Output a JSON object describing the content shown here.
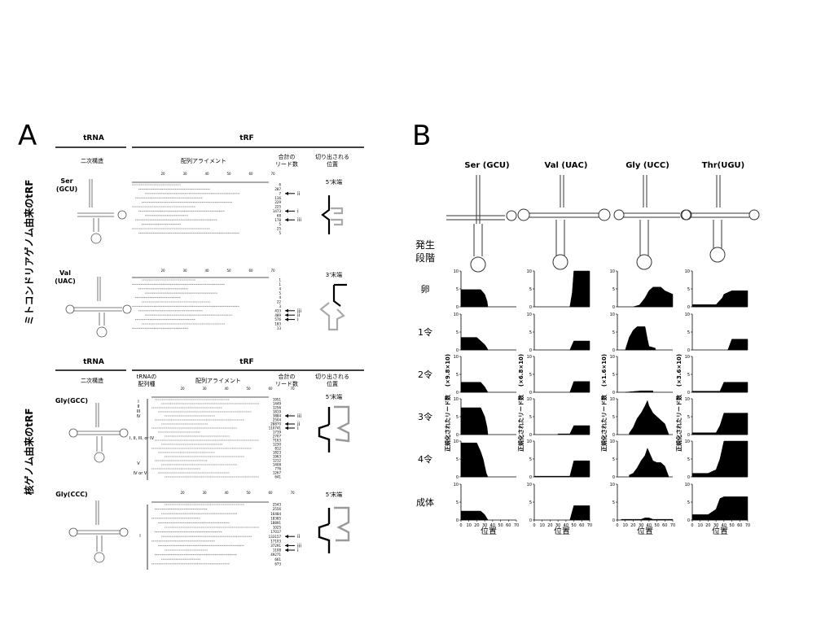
{
  "panel_a": {
    "letter": "A",
    "mito_vertical_label": "ミトコンドリアゲノム由来のtRF",
    "nuc_vertical_label": "核ゲノム由来のtRF",
    "trna_header": "tRNA",
    "trf_header": "tRF",
    "col_secondary": "二次構造",
    "col_alignment": "配列アライメント",
    "col_reads_line1": "合計の",
    "col_reads_line2": "リード数",
    "col_cut_line1": "切り出される",
    "col_cut_line2": "位置",
    "col_gene_line1": "tRNAの",
    "col_gene_line2": "配列種",
    "scale_ticks": [
      "20",
      "30",
      "40",
      "50",
      "60",
      "70"
    ],
    "blocks": [
      {
        "name_line1": "Ser",
        "name_line2": "(GCU)",
        "end_label": "5'末端",
        "reads": [
          "6",
          "287",
          "7",
          "136",
          "229",
          "225",
          "1473",
          "68",
          "178",
          "5",
          "25",
          "5"
        ],
        "arrows": [
          {
            "row": 2,
            "label": "ii"
          },
          {
            "row": 6,
            "label": "i"
          },
          {
            "row": 8,
            "label": "iii"
          }
        ]
      },
      {
        "name_line1": "Val",
        "name_line2": "(UAC)",
        "end_label": "3'末端",
        "reads": [
          "1",
          "1",
          "4",
          "5",
          "4",
          "22",
          "3",
          "433",
          "489",
          "576",
          "183",
          "13"
        ],
        "arrows": [
          {
            "row": 7,
            "label": "iii"
          },
          {
            "row": 8,
            "label": "ii"
          },
          {
            "row": 9,
            "label": "i"
          }
        ]
      },
      {
        "name_line1": "Gly(GCC)",
        "name_line2": "",
        "end_label": "5'末端",
        "gene_groups": [
          "I",
          "II",
          "III",
          "IV",
          "I, II, III, or IV",
          "V",
          "IV or V"
        ],
        "reads": [
          "1951",
          "1449",
          "1256",
          "1819",
          "3884",
          "2504",
          "28870",
          "110741",
          "1739",
          "2707",
          "7163",
          "1230",
          "812",
          "1823",
          "1963",
          "1212",
          "1408",
          "776",
          "1267",
          "641"
        ],
        "arrows": [
          {
            "row": 4,
            "label": "iii"
          },
          {
            "row": 6,
            "label": "ii"
          },
          {
            "row": 7,
            "label": "i"
          }
        ]
      },
      {
        "name_line1": "Gly(CCC)",
        "name_line2": "",
        "end_label": "5'末端",
        "gene_groups": [
          "I"
        ],
        "reads": [
          "2543",
          "2556",
          "16484",
          "18385",
          "18891",
          "1025",
          "17017",
          "133157",
          "17103",
          "37291",
          "1108",
          "49271",
          "661",
          "673"
        ],
        "arrows": [
          {
            "row": 7,
            "label": "ii"
          },
          {
            "row": 9,
            "label": "iii"
          },
          {
            "row": 10,
            "label": "i"
          }
        ]
      }
    ]
  },
  "panel_b": {
    "letter": "B",
    "stage_header_line1": "発生",
    "stage_header_line2": "段階",
    "stages": [
      "卵",
      "1令",
      "2令",
      "3令",
      "4令",
      "成体"
    ],
    "y_axis_label": "正規化されたリード数",
    "x_axis_label": "位置",
    "trnas": [
      {
        "name": "Ser (GCU)",
        "scale": "(×9.8×10)"
      },
      {
        "name": "Val (UAC)",
        "scale": "(×6.8×10)"
      },
      {
        "name": "Gly (UCC)",
        "scale": "(×1.6×10)"
      },
      {
        "name": "Thr(UGU)",
        "scale": "(×3.6×10)"
      }
    ]
  },
  "chart_data": {
    "type": "area",
    "x_ticks": [
      "0",
      "10",
      "20",
      "30",
      "40",
      "50",
      "60",
      "70"
    ],
    "y_ticks": [
      "0",
      "5",
      "10"
    ],
    "xlim": [
      0,
      70
    ],
    "ylim": [
      0,
      10
    ],
    "xlabel": "位置",
    "ylabel": "正規化されたリード数",
    "grid": false,
    "rows": [
      "卵",
      "1令",
      "2令",
      "3令",
      "4令",
      "成体"
    ],
    "columns": [
      "Ser (GCU)",
      "Val (UAC)",
      "Gly (UCC)",
      "Thr(UGU)"
    ],
    "panels": [
      {
        "row": "卵",
        "column": "Ser (GCU)",
        "x": [
          0,
          5,
          25,
          30,
          33,
          34
        ],
        "y": [
          4.8,
          4.8,
          4.8,
          3.5,
          1.5,
          0
        ]
      },
      {
        "row": "卵",
        "column": "Val (UAC)",
        "x": [
          45,
          48,
          50,
          70
        ],
        "y": [
          0,
          4,
          10,
          10
        ]
      },
      {
        "row": "卵",
        "column": "Gly (UCC)",
        "x": [
          20,
          28,
          35,
          40,
          45,
          55,
          60,
          70
        ],
        "y": [
          0,
          0.5,
          2.5,
          4.5,
          5.5,
          5.5,
          4.5,
          3.5
        ]
      },
      {
        "row": "卵",
        "column": "Thr(UGU)",
        "x": [
          0,
          30,
          38,
          40,
          50,
          70
        ],
        "y": [
          0.6,
          0.6,
          2.5,
          3.5,
          4.5,
          4.5
        ]
      },
      {
        "row": "1令",
        "column": "Ser (GCU)",
        "x": [
          0,
          5,
          20,
          25,
          30,
          33,
          34
        ],
        "y": [
          3.5,
          3.5,
          3.5,
          2.5,
          1.5,
          0.5,
          0
        ]
      },
      {
        "row": "1令",
        "column": "Val (UAC)",
        "x": [
          45,
          50,
          70
        ],
        "y": [
          0,
          2.5,
          2.5
        ]
      },
      {
        "row": "1令",
        "column": "Gly (UCC)",
        "x": [
          10,
          15,
          20,
          25,
          35,
          38,
          40,
          48
        ],
        "y": [
          0,
          3.5,
          5.5,
          6.5,
          6.5,
          3,
          1,
          0.5
        ]
      },
      {
        "row": "1令",
        "column": "Thr(UGU)",
        "x": [
          45,
          50,
          70
        ],
        "y": [
          0,
          3,
          3
        ]
      },
      {
        "row": "2令",
        "column": "Ser (GCU)",
        "x": [
          0,
          25,
          30,
          34
        ],
        "y": [
          2.8,
          2.8,
          1.5,
          0
        ]
      },
      {
        "row": "2令",
        "column": "Val (UAC)",
        "x": [
          45,
          50,
          70
        ],
        "y": [
          0,
          3,
          3
        ]
      },
      {
        "row": "2令",
        "column": "Gly (UCC)",
        "x": [
          10,
          30,
          45
        ],
        "y": [
          0,
          0.4,
          0.4
        ]
      },
      {
        "row": "2令",
        "column": "Thr(UGU)",
        "x": [
          0,
          35,
          40,
          70
        ],
        "y": [
          0.3,
          0.3,
          2.8,
          2.8
        ]
      },
      {
        "row": "3令",
        "column": "Ser (GCU)",
        "x": [
          0,
          25,
          30,
          33,
          34
        ],
        "y": [
          7.5,
          7.5,
          5,
          2,
          0
        ]
      },
      {
        "row": "3令",
        "column": "Val (UAC)",
        "x": [
          30,
          45,
          50,
          70
        ],
        "y": [
          0.2,
          0.2,
          2.5,
          2.5
        ]
      },
      {
        "row": "3令",
        "column": "Gly (UCC)",
        "x": [
          15,
          20,
          25,
          30,
          35,
          38,
          40,
          45,
          50,
          55,
          60,
          65
        ],
        "y": [
          0.4,
          2,
          4.5,
          6,
          8,
          9.5,
          8,
          6,
          5,
          4,
          3,
          0
        ]
      },
      {
        "row": "3令",
        "column": "Thr(UGU)",
        "x": [
          0,
          30,
          35,
          40,
          70
        ],
        "y": [
          0.5,
          0.5,
          2.5,
          6,
          6
        ]
      },
      {
        "row": "4令",
        "column": "Ser (GCU)",
        "x": [
          0,
          20,
          25,
          28,
          30,
          32,
          34
        ],
        "y": [
          9.5,
          9.5,
          7,
          5,
          3,
          1,
          0
        ]
      },
      {
        "row": "4令",
        "column": "Val (UAC)",
        "x": [
          0,
          45,
          50,
          70
        ],
        "y": [
          0.2,
          0.2,
          4.5,
          4.5
        ]
      },
      {
        "row": "4令",
        "column": "Gly (UCC)",
        "x": [
          15,
          20,
          25,
          30,
          35,
          38,
          40,
          45,
          50,
          55,
          60,
          65
        ],
        "y": [
          0.5,
          1,
          2.5,
          4.5,
          6,
          8,
          7,
          4.5,
          4,
          4,
          3,
          0
        ]
      },
      {
        "row": "4令",
        "column": "Thr(UGU)",
        "x": [
          0,
          20,
          30,
          35,
          40,
          70
        ],
        "y": [
          1,
          1,
          2,
          5,
          10,
          10
        ]
      },
      {
        "row": "成体",
        "column": "Ser (GCU)",
        "x": [
          0,
          25,
          30,
          34
        ],
        "y": [
          2.5,
          2.5,
          1.5,
          0
        ]
      },
      {
        "row": "成体",
        "column": "Val (UAC)",
        "x": [
          45,
          50,
          70
        ],
        "y": [
          0,
          4,
          4
        ]
      },
      {
        "row": "成体",
        "column": "Gly (UCC)",
        "x": [
          5,
          30,
          35,
          40,
          45,
          70
        ],
        "y": [
          0.2,
          0.2,
          0.6,
          0.6,
          0.2,
          0.2
        ]
      },
      {
        "row": "成体",
        "column": "Thr(UGU)",
        "x": [
          0,
          20,
          30,
          35,
          40,
          70
        ],
        "y": [
          1.5,
          1.5,
          3,
          6,
          6.5,
          6.5
        ]
      }
    ]
  }
}
